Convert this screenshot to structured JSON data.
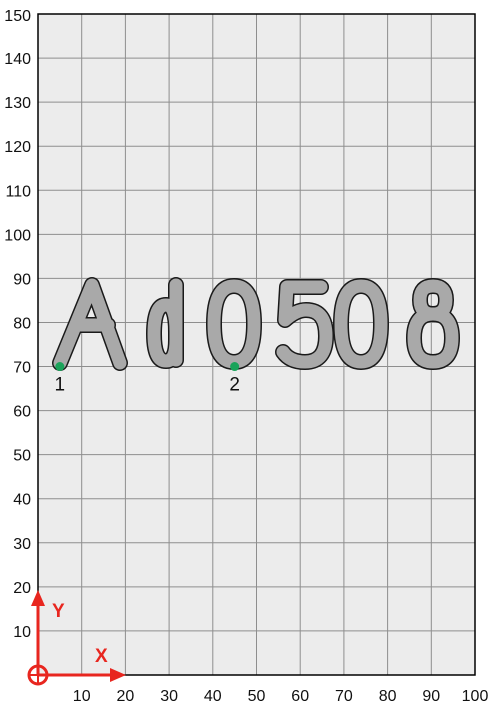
{
  "grid": {
    "x_ticks": [
      "10",
      "20",
      "30",
      "40",
      "50",
      "60",
      "70",
      "80",
      "90",
      "100"
    ],
    "y_ticks": [
      "10",
      "20",
      "30",
      "40",
      "50",
      "60",
      "70",
      "80",
      "90",
      "100",
      "110",
      "120",
      "130",
      "140",
      "150"
    ],
    "x_range": [
      0,
      100
    ],
    "y_range": [
      0,
      150
    ],
    "step": 10,
    "background_color": "#ececec",
    "grid_color": "#8e8e8e",
    "border_color": "#000000"
  },
  "axes_indicator": {
    "x_label": "X",
    "y_label": "Y",
    "color": "#e8261f"
  },
  "engraving": {
    "text": "Ad0508",
    "fill_color": "#a9a9a9",
    "stroke_color": "#1a1a1a"
  },
  "points": [
    {
      "label": "1",
      "x": 5,
      "y": 70,
      "color": "#1aa35a"
    },
    {
      "label": "2",
      "x": 45,
      "y": 70,
      "color": "#1aa35a"
    }
  ]
}
